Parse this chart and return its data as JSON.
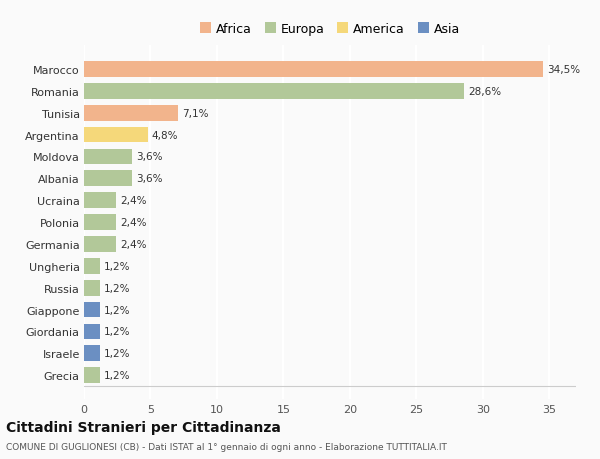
{
  "countries": [
    "Marocco",
    "Romania",
    "Tunisia",
    "Argentina",
    "Moldova",
    "Albania",
    "Ucraina",
    "Polonia",
    "Germania",
    "Ungheria",
    "Russia",
    "Giappone",
    "Giordania",
    "Israele",
    "Grecia"
  ],
  "values": [
    34.5,
    28.6,
    7.1,
    4.8,
    3.6,
    3.6,
    2.4,
    2.4,
    2.4,
    1.2,
    1.2,
    1.2,
    1.2,
    1.2,
    1.2
  ],
  "labels": [
    "34,5%",
    "28,6%",
    "7,1%",
    "4,8%",
    "3,6%",
    "3,6%",
    "2,4%",
    "2,4%",
    "2,4%",
    "1,2%",
    "1,2%",
    "1,2%",
    "1,2%",
    "1,2%",
    "1,2%"
  ],
  "continents": [
    "Africa",
    "Europa",
    "Africa",
    "America",
    "Europa",
    "Europa",
    "Europa",
    "Europa",
    "Europa",
    "Europa",
    "Europa",
    "Asia",
    "Asia",
    "Asia",
    "Europa"
  ],
  "colors": {
    "Africa": "#F2B48C",
    "Europa": "#B2C899",
    "America": "#F5D87A",
    "Asia": "#6B8FC2"
  },
  "legend_order": [
    "Africa",
    "Europa",
    "America",
    "Asia"
  ],
  "legend_colors": [
    "#F2B48C",
    "#B2C899",
    "#F5D87A",
    "#6B8FC2"
  ],
  "xlim": [
    0,
    37
  ],
  "xticks": [
    0,
    5,
    10,
    15,
    20,
    25,
    30,
    35
  ],
  "title": "Cittadini Stranieri per Cittadinanza",
  "subtitle": "COMUNE DI GUGLIONESI (CB) - Dati ISTAT al 1° gennaio di ogni anno - Elaborazione TUTTITALIA.IT",
  "bg_color": "#FAFAFA",
  "grid_color": "#FFFFFF",
  "bar_height": 0.72
}
